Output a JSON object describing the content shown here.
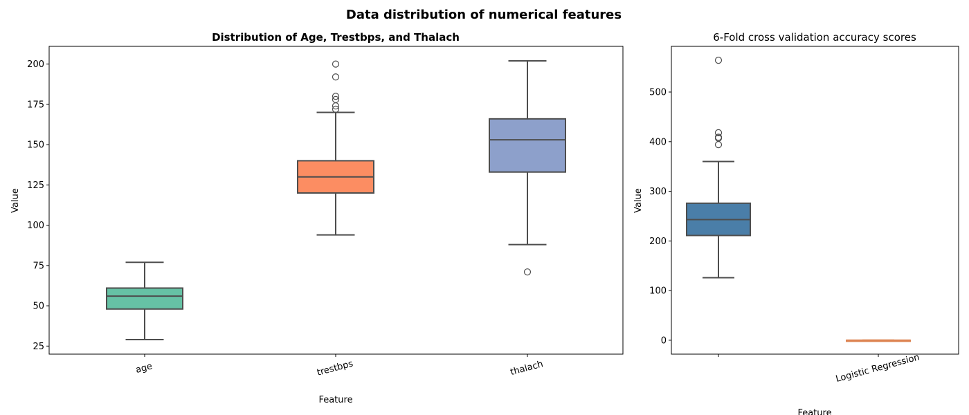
{
  "suptitle": "Data distribution of numerical features",
  "chart_data": [
    {
      "type": "box",
      "title": "Distribution of Age, Trestbps, and Thalach",
      "xlabel": "Feature",
      "ylabel": "Value",
      "ylim": [
        20,
        211
      ],
      "yticks": [
        25,
        50,
        75,
        100,
        125,
        150,
        175,
        200
      ],
      "grid": false,
      "legend": "none",
      "categories": [
        "age",
        "trestbps",
        "thalach"
      ],
      "boxes": [
        {
          "name": "age",
          "whisker_low": 29,
          "q1": 48,
          "median": 56,
          "q3": 61,
          "whisker_high": 77,
          "outliers": [],
          "color": "#66c2a5"
        },
        {
          "name": "trestbps",
          "whisker_low": 94,
          "q1": 120,
          "median": 130,
          "q3": 140,
          "whisker_high": 170,
          "outliers": [
            172,
            174,
            178,
            180,
            192,
            200
          ],
          "color": "#fc8d62"
        },
        {
          "name": "thalach",
          "whisker_low": 88,
          "q1": 133,
          "median": 153,
          "q3": 166,
          "whisker_high": 202,
          "outliers": [
            71
          ],
          "color": "#8da0cb"
        }
      ]
    },
    {
      "type": "box",
      "title": "6-Fold cross validation accuracy scores",
      "xlabel": "Feature",
      "ylabel": "Value",
      "ylim": [
        -28,
        592
      ],
      "yticks": [
        0,
        100,
        200,
        300,
        400,
        500
      ],
      "grid": false,
      "legend": "none",
      "categories": [
        "",
        "Logistic Regression"
      ],
      "boxes": [
        {
          "name": "",
          "whisker_low": 126,
          "q1": 211,
          "median": 243,
          "q3": 276,
          "whisker_high": 360,
          "outliers": [
            394,
            407,
            409,
            418,
            564
          ],
          "color": "#4a7ea8"
        },
        {
          "name": "Logistic Regression",
          "whisker_low": 0,
          "q1": 0,
          "median": 0,
          "q3": 0,
          "whisker_high": 0,
          "outliers": [],
          "color": "#dd8452"
        }
      ]
    }
  ]
}
